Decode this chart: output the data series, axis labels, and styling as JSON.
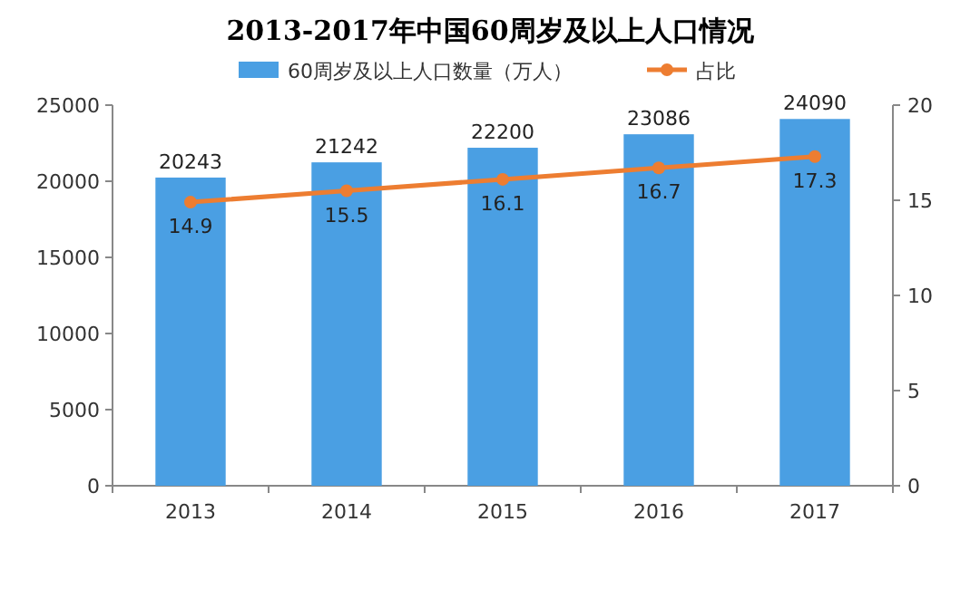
{
  "chart_data": {
    "type": "bar",
    "title": "2013-2017年中国60周岁及以上人口情况",
    "categories": [
      "2013",
      "2014",
      "2015",
      "2016",
      "2017"
    ],
    "series": [
      {
        "name": "60周岁及以上人口数量（万人）",
        "color": "#4a9fe3",
        "values": [
          20243,
          21242,
          22200,
          23086,
          24090
        ]
      },
      {
        "name": "占比",
        "type": "line",
        "axis": "y2",
        "color": "#ed7d31",
        "values": [
          14.9,
          15.5,
          16.1,
          16.7,
          17.3
        ]
      }
    ],
    "ylim": [
      0,
      25000
    ],
    "yticks": [
      0,
      5000,
      10000,
      15000,
      20000,
      25000
    ],
    "y2lim": [
      0,
      20
    ],
    "y2ticks": [
      0,
      5,
      10,
      15,
      20
    ],
    "data_labels": true,
    "legend": "top",
    "marker": "circle",
    "line_style": "solid"
  }
}
